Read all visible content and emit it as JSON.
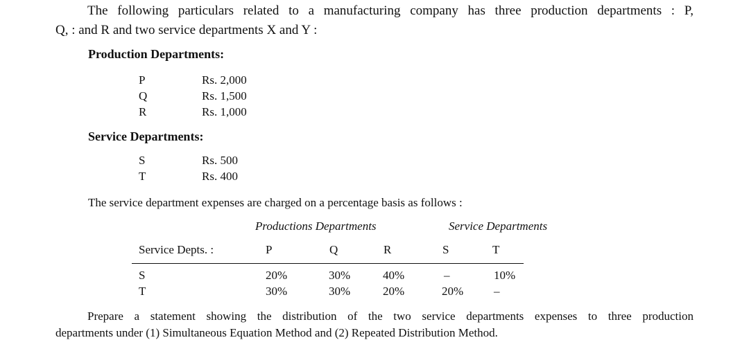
{
  "intro": {
    "line1": "The following particulars related to a manufacturing company has three production departments : P,",
    "line2": "Q, : and R and two service departments X and Y :"
  },
  "production": {
    "heading": "Production Departments:",
    "items": [
      {
        "dept": "P",
        "amount": "Rs. 2,000"
      },
      {
        "dept": "Q",
        "amount": "Rs. 1,500"
      },
      {
        "dept": "R",
        "amount": "Rs. 1,000"
      }
    ]
  },
  "service": {
    "heading": "Service Departments:",
    "items": [
      {
        "dept": "S",
        "amount": "Rs. 500"
      },
      {
        "dept": "T",
        "amount": "Rs. 400"
      }
    ]
  },
  "charge_intro": "The service department expenses are charged on a percentage basis as follows :",
  "table": {
    "group_production": "Productions Departments",
    "group_service": "Service Departments",
    "row_header": "Service Depts. :",
    "columns": [
      "P",
      "Q",
      "R",
      "S",
      "T"
    ],
    "rows": [
      {
        "label": "S",
        "values": [
          "20%",
          "30%",
          "40%",
          "–",
          "10%"
        ]
      },
      {
        "label": "T",
        "values": [
          "30%",
          "30%",
          "20%",
          "20%",
          "–"
        ]
      }
    ]
  },
  "task": {
    "line1": "Prepare a statement showing the distribution of the two service departments expenses to three production",
    "line2": "departments under (1) Simultaneous Equation Method and (2) Repeated Distribution Method."
  }
}
